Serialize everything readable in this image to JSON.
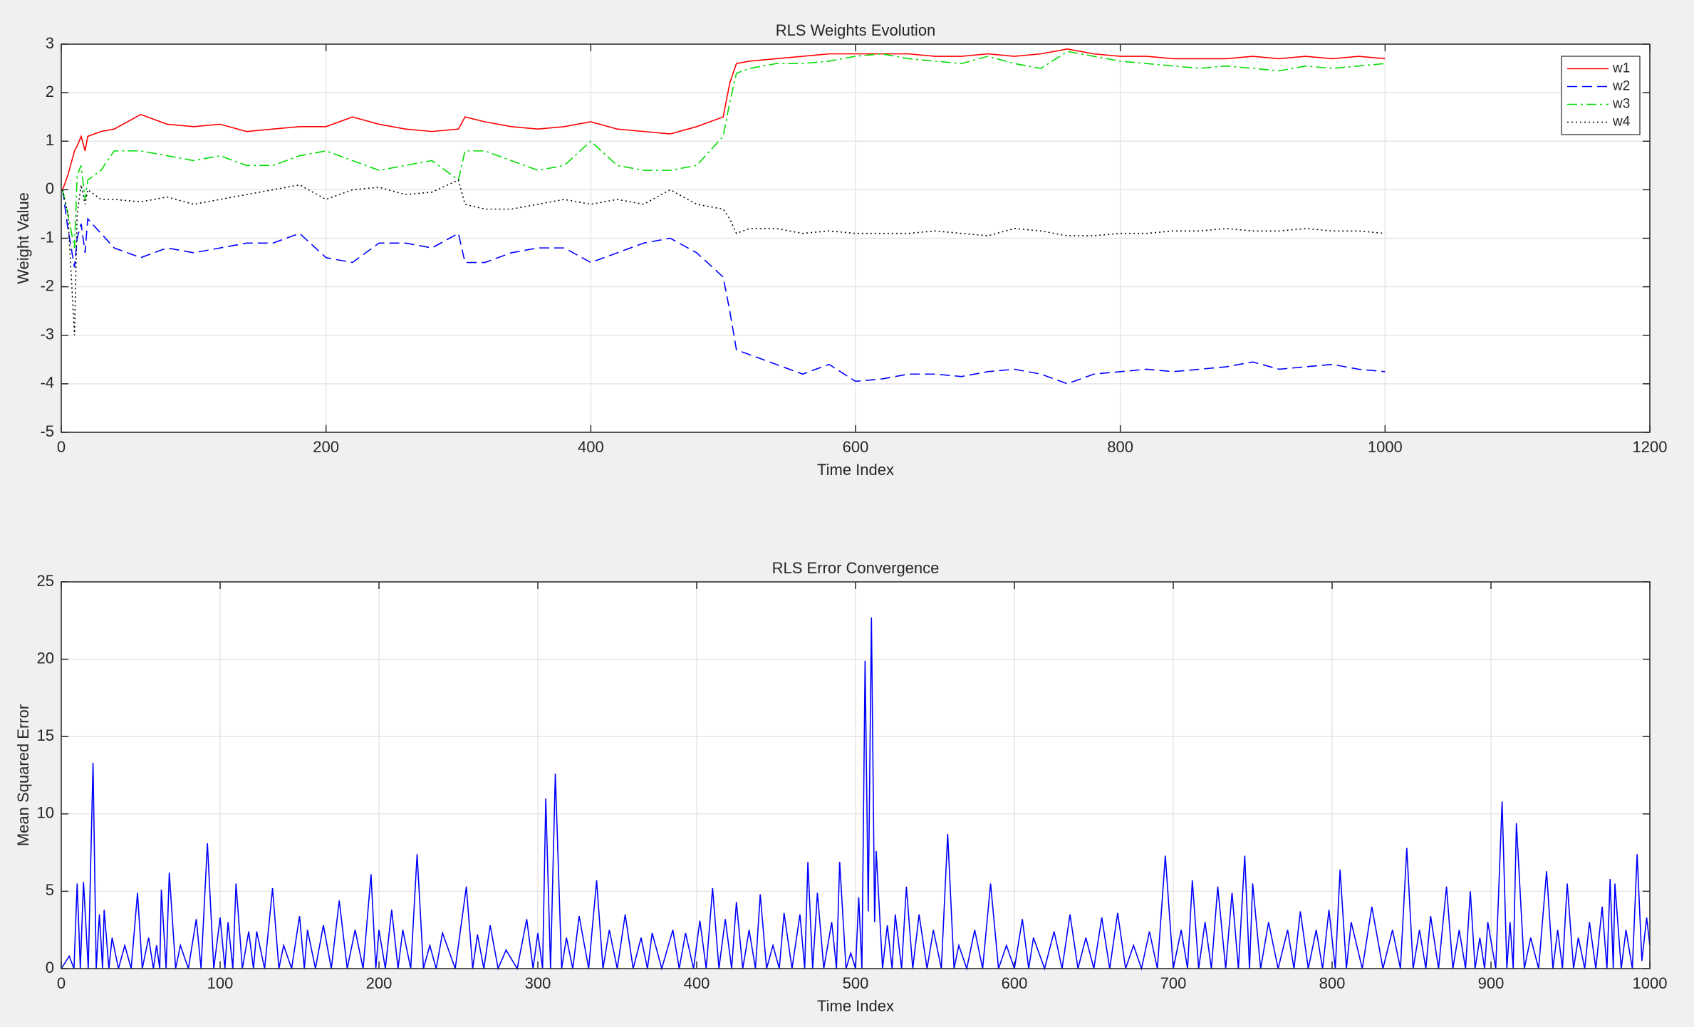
{
  "chart_data": [
    {
      "type": "line",
      "title": "RLS Weights Evolution",
      "x_label": "Time Index",
      "y_label": "Weight Value",
      "xlim": [
        0,
        1200
      ],
      "xticks": [
        0,
        200,
        400,
        600,
        800,
        1000,
        1200
      ],
      "ylim": [
        -5,
        3
      ],
      "yticks": [
        -5,
        -4,
        -3,
        -2,
        -1,
        0,
        1,
        2,
        3
      ],
      "grid": true,
      "legend": "northeast",
      "x": [
        1,
        5,
        10,
        12,
        15,
        18,
        20,
        30,
        40,
        60,
        80,
        100,
        120,
        140,
        160,
        180,
        200,
        220,
        240,
        260,
        280,
        300,
        305,
        320,
        340,
        360,
        380,
        400,
        420,
        440,
        460,
        480,
        500,
        505,
        510,
        520,
        540,
        560,
        580,
        600,
        620,
        640,
        660,
        680,
        700,
        720,
        740,
        760,
        780,
        800,
        820,
        840,
        860,
        880,
        900,
        920,
        940,
        960,
        980,
        1000
      ],
      "series": [
        {
          "name": "w1",
          "color": "#ff0000",
          "line_style": "solid",
          "values": [
            0,
            0.3,
            0.8,
            0.9,
            1.1,
            0.8,
            1.1,
            1.2,
            1.25,
            1.55,
            1.35,
            1.3,
            1.35,
            1.2,
            1.25,
            1.3,
            1.3,
            1.5,
            1.35,
            1.25,
            1.2,
            1.25,
            1.5,
            1.4,
            1.3,
            1.25,
            1.3,
            1.4,
            1.25,
            1.2,
            1.15,
            1.3,
            1.5,
            2.2,
            2.6,
            2.65,
            2.7,
            2.75,
            2.8,
            2.8,
            2.8,
            2.8,
            2.75,
            2.75,
            2.8,
            2.75,
            2.8,
            2.9,
            2.8,
            2.75,
            2.75,
            2.7,
            2.7,
            2.7,
            2.75,
            2.7,
            2.75,
            2.7,
            2.75,
            2.7
          ]
        },
        {
          "name": "w2",
          "color": "#0000ff",
          "line_style": "dashed",
          "values": [
            0,
            -0.8,
            -1.6,
            -1.0,
            -0.7,
            -1.3,
            -0.6,
            -0.9,
            -1.2,
            -1.4,
            -1.2,
            -1.3,
            -1.2,
            -1.1,
            -1.1,
            -0.9,
            -1.4,
            -1.5,
            -1.1,
            -1.1,
            -1.2,
            -0.9,
            -1.5,
            -1.5,
            -1.3,
            -1.2,
            -1.2,
            -1.5,
            -1.3,
            -1.1,
            -1.0,
            -1.3,
            -1.8,
            -2.5,
            -3.3,
            -3.4,
            -3.6,
            -3.8,
            -3.6,
            -3.95,
            -3.9,
            -3.8,
            -3.8,
            -3.85,
            -3.75,
            -3.7,
            -3.8,
            -4.0,
            -3.8,
            -3.75,
            -3.7,
            -3.75,
            -3.7,
            -3.65,
            -3.55,
            -3.7,
            -3.65,
            -3.6,
            -3.7,
            -3.75
          ]
        },
        {
          "name": "w3",
          "color": "#00dd00",
          "line_style": "dashdot",
          "values": [
            0,
            -0.5,
            -1.2,
            0.3,
            0.5,
            -0.2,
            0.2,
            0.4,
            0.8,
            0.8,
            0.7,
            0.6,
            0.7,
            0.5,
            0.5,
            0.7,
            0.8,
            0.6,
            0.4,
            0.5,
            0.6,
            0.2,
            0.8,
            0.8,
            0.6,
            0.4,
            0.5,
            1.0,
            0.5,
            0.4,
            0.4,
            0.5,
            1.1,
            1.8,
            2.4,
            2.5,
            2.6,
            2.6,
            2.65,
            2.75,
            2.8,
            2.7,
            2.65,
            2.6,
            2.75,
            2.6,
            2.5,
            2.85,
            2.75,
            2.65,
            2.6,
            2.55,
            2.5,
            2.55,
            2.5,
            2.45,
            2.55,
            2.5,
            2.55,
            2.6
          ]
        },
        {
          "name": "w4",
          "color": "#000000",
          "line_style": "dotted",
          "values": [
            0,
            -0.5,
            -3.0,
            -0.5,
            0.1,
            -0.3,
            0.0,
            -0.2,
            -0.2,
            -0.25,
            -0.15,
            -0.3,
            -0.2,
            -0.1,
            0.0,
            0.1,
            -0.2,
            0.0,
            0.05,
            -0.1,
            -0.05,
            0.2,
            -0.3,
            -0.4,
            -0.4,
            -0.3,
            -0.2,
            -0.3,
            -0.2,
            -0.3,
            0.0,
            -0.3,
            -0.4,
            -0.6,
            -0.9,
            -0.8,
            -0.8,
            -0.9,
            -0.85,
            -0.9,
            -0.9,
            -0.9,
            -0.85,
            -0.9,
            -0.95,
            -0.8,
            -0.85,
            -0.95,
            -0.95,
            -0.9,
            -0.9,
            -0.85,
            -0.85,
            -0.8,
            -0.85,
            -0.85,
            -0.8,
            -0.85,
            -0.85,
            -0.9
          ]
        }
      ]
    },
    {
      "type": "line",
      "title": "RLS Error Convergence",
      "x_label": "Time Index",
      "y_label": "Mean Squared Error",
      "xlim": [
        0,
        1000
      ],
      "xticks": [
        0,
        100,
        200,
        300,
        400,
        500,
        600,
        700,
        800,
        900,
        1000
      ],
      "ylim": [
        0,
        25
      ],
      "yticks": [
        0,
        5,
        10,
        15,
        20,
        25
      ],
      "grid": true,
      "x": [
        0,
        5,
        8,
        10,
        12,
        14,
        17,
        20,
        22,
        24,
        26,
        27,
        30,
        32,
        36,
        40,
        44,
        48,
        51,
        55,
        58,
        60,
        62,
        63,
        66,
        68,
        72,
        75,
        80,
        85,
        88,
        92,
        96,
        100,
        103,
        105,
        108,
        110,
        114,
        118,
        121,
        123,
        128,
        133,
        137,
        140,
        145,
        150,
        153,
        155,
        160,
        165,
        170,
        175,
        180,
        185,
        190,
        195,
        198,
        200,
        204,
        208,
        212,
        215,
        220,
        224,
        228,
        232,
        236,
        240,
        248,
        255,
        259,
        262,
        266,
        270,
        275,
        280,
        287,
        293,
        297,
        300,
        303,
        305,
        308,
        311,
        315,
        318,
        322,
        326,
        332,
        337,
        341,
        345,
        350,
        355,
        360,
        365,
        369,
        372,
        378,
        385,
        389,
        393,
        398,
        402,
        406,
        410,
        414,
        418,
        422,
        425,
        429,
        433,
        437,
        440,
        444,
        448,
        452,
        455,
        460,
        465,
        468,
        470,
        473,
        476,
        480,
        485,
        488,
        490,
        494,
        497,
        500,
        502,
        504,
        506,
        508,
        510,
        512,
        513,
        517,
        520,
        523,
        525,
        529,
        532,
        536,
        540,
        545,
        549,
        554,
        558,
        562,
        565,
        570,
        575,
        580,
        585,
        590,
        595,
        600,
        605,
        609,
        612,
        619,
        625,
        630,
        635,
        640,
        645,
        650,
        655,
        660,
        665,
        670,
        675,
        680,
        685,
        690,
        695,
        700,
        705,
        709,
        712,
        716,
        720,
        724,
        728,
        733,
        737,
        741,
        745,
        748,
        750,
        755,
        760,
        766,
        772,
        776,
        780,
        785,
        790,
        794,
        798,
        802,
        805,
        809,
        812,
        819,
        825,
        832,
        838,
        843,
        847,
        851,
        855,
        859,
        862,
        867,
        872,
        876,
        880,
        884,
        887,
        890,
        893,
        896,
        898,
        903,
        907,
        910,
        912,
        914,
        916,
        921,
        925,
        930,
        935,
        939,
        942,
        945,
        948,
        952,
        955,
        959,
        962,
        966,
        970,
        973,
        975,
        977,
        978,
        982,
        985,
        989,
        992,
        995,
        998,
        1000
      ],
      "series": [
        {
          "color": "#0000ff",
          "line_style": "solid",
          "values": [
            0,
            0.8,
            0,
            5.5,
            0,
            5.6,
            0,
            13.3,
            0,
            3.5,
            0,
            3.8,
            0,
            2,
            0,
            1.5,
            0,
            4.9,
            0,
            2,
            0,
            1.5,
            0,
            5.1,
            0,
            6.2,
            0,
            1.5,
            0,
            3.2,
            0,
            8.1,
            0,
            3.3,
            0,
            3,
            0,
            5.5,
            0,
            2.4,
            0,
            2.4,
            0,
            5.2,
            0,
            1.5,
            0,
            3.4,
            0,
            2.5,
            0,
            2.8,
            0,
            4.4,
            0,
            2.5,
            0,
            6.1,
            0,
            2.5,
            0,
            3.8,
            0,
            2.5,
            0,
            7.4,
            0,
            1.5,
            0,
            2.3,
            0,
            5.3,
            0,
            2.2,
            0,
            2.8,
            0,
            1.2,
            0,
            3.2,
            0,
            2.3,
            0,
            11,
            0,
            12.6,
            0,
            2,
            0,
            3.4,
            0,
            5.7,
            0,
            2.5,
            0,
            3.5,
            0,
            2,
            0,
            2.3,
            0,
            2.5,
            0,
            2.3,
            0,
            3.1,
            0,
            5.2,
            0,
            3.2,
            0,
            4.3,
            0,
            2.5,
            0,
            4.8,
            0,
            1.5,
            0,
            3.6,
            0,
            3.5,
            0,
            6.9,
            0,
            4.9,
            0,
            3,
            0,
            6.9,
            0,
            1,
            0,
            4.6,
            0,
            19.9,
            3.7,
            22.7,
            3,
            7.6,
            0,
            2.8,
            0,
            3.5,
            0,
            5.3,
            0,
            3.5,
            0,
            2.5,
            0,
            8.7,
            0,
            1.5,
            0,
            2.5,
            0,
            5.5,
            0,
            1.5,
            0,
            3.2,
            0,
            2,
            0,
            2.4,
            0,
            3.5,
            0,
            2,
            0,
            3.3,
            0,
            3.6,
            0,
            1.5,
            0,
            2.4,
            0,
            7.3,
            0,
            2.5,
            0,
            5.7,
            0,
            3,
            0,
            5.3,
            0,
            4.9,
            0,
            7.3,
            0,
            5.5,
            0,
            3,
            0,
            2.5,
            0,
            3.7,
            0,
            2.5,
            0,
            3.8,
            0,
            6.4,
            0,
            3,
            0,
            4,
            0,
            2.5,
            0,
            7.8,
            0,
            2.5,
            0,
            3.4,
            0,
            5.3,
            0,
            2.5,
            0,
            5,
            0,
            2,
            0,
            3,
            0,
            10.8,
            0,
            3,
            0,
            9.4,
            0,
            2,
            0,
            6.3,
            0,
            2.5,
            0,
            5.5,
            0,
            2,
            0,
            3,
            0,
            4,
            0,
            5.8,
            0,
            5.5,
            0,
            2.5,
            0,
            7.4,
            0.5,
            3.3,
            1.5
          ]
        }
      ]
    }
  ]
}
